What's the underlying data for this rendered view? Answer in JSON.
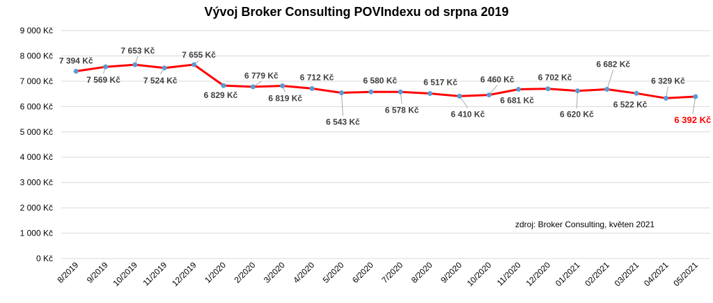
{
  "chart_data": {
    "type": "line",
    "title": "Vývoj Broker Consulting POVIndexu od srpna 2019",
    "source_note": "zdroj: Broker Consulting, květen 2021",
    "y_ticks": [
      "0 Kč",
      "1 000 Kč",
      "2 000 Kč",
      "3 000 Kč",
      "4 000 Kč",
      "5 000 Kč",
      "6 000 Kč",
      "7 000 Kč",
      "8 000 Kč",
      "9 000 Kč"
    ],
    "ylim": [
      0,
      9000
    ],
    "grid": true,
    "categories": [
      "8/2019",
      "9/2019",
      "10/2019",
      "11/2019",
      "12/2019",
      "1/2020",
      "2/2020",
      "3/2020",
      "4/2020",
      "5/2020",
      "6/2020",
      "7/2020",
      "8/2020",
      "9/2020",
      "10/2020",
      "11/2020",
      "12/2020",
      "01/2021",
      "02/2021",
      "03/2021",
      "04/2021",
      "05/2021"
    ],
    "values": [
      7394,
      7569,
      7653,
      7524,
      7655,
      6829,
      6779,
      6819,
      6712,
      6543,
      6580,
      6578,
      6517,
      6410,
      6460,
      6681,
      6702,
      6620,
      6682,
      6522,
      6329,
      6392
    ],
    "labels": [
      "7 394 Kč",
      "7 569 Kč",
      "7 653 Kč",
      "7 524 Kč",
      "7 655 Kč",
      "6 829 Kč",
      "6 779 Kč",
      "6 819 Kč",
      "6 712 Kč",
      "6 543 Kč",
      "6 580 Kč",
      "6 578 Kč",
      "6 517 Kč",
      "6 410 Kč",
      "6 460 Kč",
      "6 681 Kč",
      "6 702 Kč",
      "6 620 Kč",
      "6 682 Kč",
      "6 522 Kč",
      "6 329 Kč",
      "6 392 Kč"
    ],
    "line_color": "#ff0000",
    "marker_color": "#5b9bd5",
    "grid_color": "#d9d9d9",
    "highlight_label_color": "#ff0000"
  }
}
